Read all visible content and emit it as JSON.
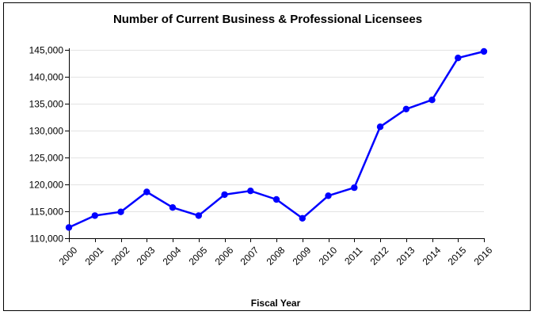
{
  "chart_data": {
    "type": "line",
    "title": "Number of Current Business & Professional Licensees",
    "xlabel": "Fiscal Year",
    "ylabel": "",
    "categories": [
      "2000",
      "2001",
      "2002",
      "2003",
      "2004",
      "2005",
      "2006",
      "2007",
      "2008",
      "2009",
      "2010",
      "2011",
      "2012",
      "2013",
      "2014",
      "2015",
      "2016"
    ],
    "values": [
      112000,
      114200,
      114900,
      118600,
      115700,
      114200,
      118100,
      118800,
      117200,
      113700,
      117900,
      119400,
      130700,
      134000,
      135700,
      143500,
      144700
    ],
    "ylim": [
      110000,
      145000
    ],
    "yticks": [
      110000,
      115000,
      120000,
      125000,
      130000,
      135000,
      140000,
      145000
    ],
    "ytick_labels": [
      "110,000",
      "115,000",
      "120,000",
      "125,000",
      "130,000",
      "135,000",
      "140,000",
      "145,000"
    ],
    "grid": true,
    "line_color": "#0000ff",
    "legend": "none"
  }
}
